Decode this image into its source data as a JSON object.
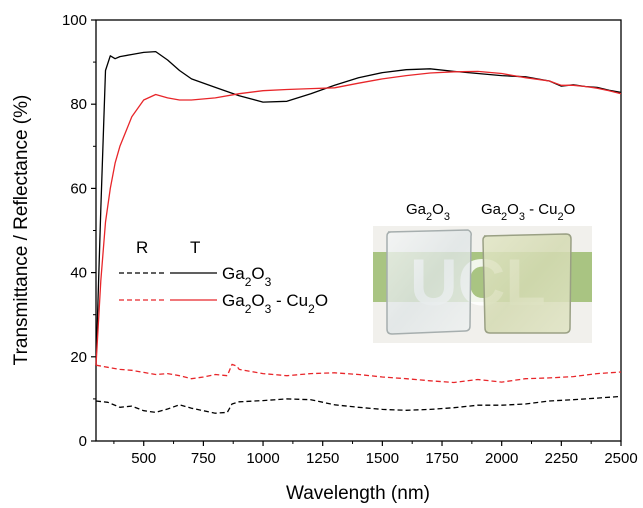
{
  "chart_data": {
    "type": "line",
    "xlabel": "Wavelength (nm)",
    "ylabel": "Transmittance / Reflectance (%)",
    "xlim": [
      300,
      2500
    ],
    "ylim": [
      0,
      100
    ],
    "x_ticks": [
      500,
      750,
      1000,
      1250,
      1500,
      1750,
      2000,
      2250,
      2500
    ],
    "y_ticks": [
      0,
      20,
      40,
      60,
      80,
      100
    ],
    "grid": false,
    "legend": {
      "placement": "center-left",
      "header_r": "R",
      "header_t": "T",
      "entries": [
        {
          "label": "Ga2O3",
          "color": "#000000"
        },
        {
          "label": "Ga2O3 - Cu2O",
          "color": "#e8262a"
        }
      ]
    },
    "series": [
      {
        "name": "Ga2O3",
        "measure": "T",
        "color": "#000000",
        "style": "solid",
        "x": [
          300,
          320,
          340,
          360,
          380,
          400,
          450,
          500,
          550,
          600,
          650,
          700,
          800,
          900,
          1000,
          1100,
          1200,
          1300,
          1400,
          1500,
          1600,
          1700,
          1800,
          1900,
          2000,
          2100,
          2200,
          2250,
          2300,
          2350,
          2400,
          2450,
          2500
        ],
        "values": [
          18,
          55,
          88,
          91.5,
          90.8,
          91.3,
          91.8,
          92.3,
          92.5,
          90.5,
          88,
          86,
          84,
          82,
          80.5,
          80.7,
          82.5,
          84.5,
          86.3,
          87.5,
          88.2,
          88.4,
          87.8,
          87.3,
          86.8,
          86.5,
          85.5,
          84.3,
          84.6,
          84.2,
          84.0,
          83.3,
          82.8
        ]
      },
      {
        "name": "Ga2O3 - Cu2O",
        "measure": "T",
        "color": "#e8262a",
        "style": "solid",
        "x": [
          300,
          320,
          340,
          360,
          380,
          400,
          450,
          500,
          550,
          600,
          650,
          700,
          800,
          900,
          1000,
          1100,
          1200,
          1300,
          1400,
          1500,
          1600,
          1700,
          1800,
          1900,
          2000,
          2100,
          2200,
          2250,
          2300,
          2350,
          2400,
          2450,
          2500
        ],
        "values": [
          18,
          38,
          52,
          60,
          66,
          70,
          77,
          81,
          82.3,
          81.5,
          81,
          81,
          81.5,
          82.5,
          83.2,
          83.5,
          83.7,
          83.9,
          85,
          86,
          86.8,
          87.4,
          87.7,
          87.8,
          87.3,
          86.3,
          85.5,
          84.5,
          84.5,
          84.2,
          83.8,
          83.2,
          82.5
        ]
      },
      {
        "name": "Ga2O3",
        "measure": "R",
        "color": "#000000",
        "style": "dashed",
        "x": [
          300,
          350,
          400,
          450,
          500,
          550,
          600,
          650,
          700,
          750,
          800,
          850,
          870,
          900,
          1000,
          1100,
          1200,
          1300,
          1400,
          1500,
          1600,
          1700,
          1800,
          1900,
          2000,
          2100,
          2200,
          2300,
          2400,
          2500
        ],
        "values": [
          9.5,
          9.2,
          8.0,
          8.3,
          7.2,
          6.8,
          7.6,
          8.6,
          7.8,
          7.2,
          6.6,
          6.8,
          8.8,
          9.3,
          9.6,
          10.0,
          9.8,
          8.6,
          8.0,
          7.5,
          7.3,
          7.5,
          7.9,
          8.5,
          8.5,
          8.8,
          9.5,
          9.8,
          10.2,
          10.6
        ]
      },
      {
        "name": "Ga2O3 - Cu2O",
        "measure": "R",
        "color": "#e8262a",
        "style": "dashed",
        "x": [
          300,
          350,
          400,
          450,
          500,
          550,
          600,
          650,
          700,
          750,
          800,
          850,
          870,
          890,
          900,
          1000,
          1100,
          1200,
          1300,
          1400,
          1500,
          1600,
          1700,
          1800,
          1900,
          2000,
          2100,
          2200,
          2300,
          2400,
          2500
        ],
        "values": [
          18,
          17.5,
          17,
          16.8,
          16.3,
          15.8,
          16,
          15.5,
          14.8,
          15.2,
          15.8,
          15.5,
          18.2,
          17.8,
          17,
          16,
          15.5,
          16,
          16.2,
          15.8,
          15.2,
          14.8,
          14.3,
          13.9,
          14.6,
          14.0,
          14.8,
          15.0,
          15.3,
          16.0,
          16.4
        ]
      }
    ],
    "inset": {
      "labels": [
        "Ga2O3",
        "Ga2O3 - Cu2O"
      ],
      "background_text": "UCL",
      "background_color": "#a9c482"
    }
  }
}
